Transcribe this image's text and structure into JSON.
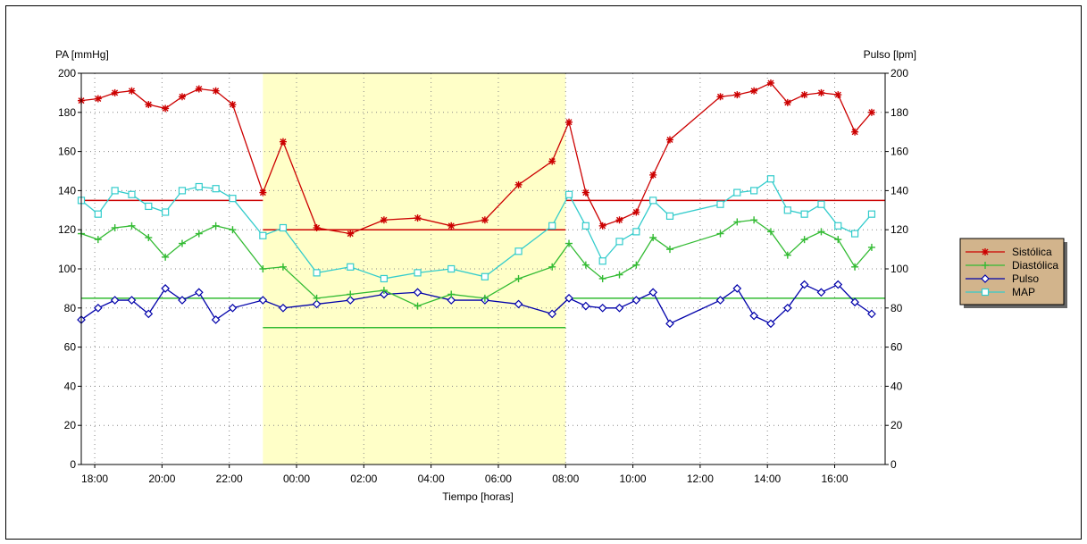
{
  "chart_data": {
    "type": "line",
    "ylabel_left": "PA [mmHg]",
    "ylabel_right": "Pulso [lpm]",
    "xlabel": "Tiempo [horas]",
    "ylim": [
      0,
      200
    ],
    "yticks": [
      0,
      20,
      40,
      60,
      80,
      100,
      120,
      140,
      160,
      180,
      200
    ],
    "xlim": [
      17.6,
      41.5
    ],
    "xticks": [
      {
        "x": 18,
        "label": "18:00"
      },
      {
        "x": 20,
        "label": "20:00"
      },
      {
        "x": 22,
        "label": "22:00"
      },
      {
        "x": 24,
        "label": "00:00"
      },
      {
        "x": 26,
        "label": "02:00"
      },
      {
        "x": 28,
        "label": "04:00"
      },
      {
        "x": 30,
        "label": "06:00"
      },
      {
        "x": 32,
        "label": "08:00"
      },
      {
        "x": 34,
        "label": "10:00"
      },
      {
        "x": 36,
        "label": "12:00"
      },
      {
        "x": 38,
        "label": "14:00"
      },
      {
        "x": 40,
        "label": "16:00"
      }
    ],
    "grid": true,
    "night_band": {
      "x0": 23.0,
      "x1": 32.0,
      "color": "#ffffc8"
    },
    "thresholds": [
      {
        "series": "Sistólica",
        "color": "#cc0000",
        "segments": [
          {
            "x0": 17.6,
            "x1": 23.0,
            "y": 135
          },
          {
            "x0": 23.0,
            "x1": 32.0,
            "y": 120
          },
          {
            "x0": 32.0,
            "x1": 41.5,
            "y": 135
          }
        ]
      },
      {
        "series": "Diastólica",
        "color": "#33bb33",
        "segments": [
          {
            "x0": 17.6,
            "x1": 23.0,
            "y": 85
          },
          {
            "x0": 23.0,
            "x1": 32.0,
            "y": 70
          },
          {
            "x0": 32.0,
            "x1": 41.5,
            "y": 85
          }
        ]
      }
    ],
    "series": [
      {
        "name": "Sistólica",
        "color": "#cc0000",
        "marker": "star",
        "x": [
          17.6,
          18.1,
          18.6,
          19.1,
          19.6,
          20.1,
          20.6,
          21.1,
          21.6,
          22.1,
          23.0,
          23.6,
          24.6,
          25.6,
          26.6,
          27.6,
          28.6,
          29.6,
          30.6,
          31.6,
          32.1,
          32.6,
          33.1,
          33.6,
          34.1,
          34.6,
          35.1,
          36.6,
          37.1,
          37.6,
          38.1,
          38.6,
          39.1,
          39.6,
          40.1,
          40.6,
          41.1
        ],
        "values": [
          186,
          187,
          190,
          191,
          184,
          182,
          188,
          192,
          191,
          184,
          139,
          165,
          121,
          118,
          125,
          126,
          122,
          125,
          143,
          155,
          175,
          139,
          122,
          125,
          129,
          148,
          166,
          188,
          189,
          191,
          195,
          185,
          189,
          190,
          189,
          170,
          180
        ]
      },
      {
        "name": "Diastólica",
        "color": "#33bb33",
        "marker": "plus",
        "x": [
          17.6,
          18.1,
          18.6,
          19.1,
          19.6,
          20.1,
          20.6,
          21.1,
          21.6,
          22.1,
          23.0,
          23.6,
          24.6,
          25.6,
          26.6,
          27.6,
          28.6,
          29.6,
          30.6,
          31.6,
          32.1,
          32.6,
          33.1,
          33.6,
          34.1,
          34.6,
          35.1,
          36.6,
          37.1,
          37.6,
          38.1,
          38.6,
          39.1,
          39.6,
          40.1,
          40.6,
          41.1
        ],
        "values": [
          118,
          115,
          121,
          122,
          116,
          106,
          113,
          118,
          122,
          120,
          100,
          101,
          85,
          87,
          89,
          81,
          87,
          85,
          95,
          101,
          113,
          102,
          95,
          97,
          102,
          116,
          110,
          118,
          124,
          125,
          119,
          107,
          115,
          119,
          115,
          101,
          111
        ]
      },
      {
        "name": "Pulso",
        "color": "#0000aa",
        "marker": "diamond",
        "x": [
          17.6,
          18.1,
          18.6,
          19.1,
          19.6,
          20.1,
          20.6,
          21.1,
          21.6,
          22.1,
          23.0,
          23.6,
          24.6,
          25.6,
          26.6,
          27.6,
          28.6,
          29.6,
          30.6,
          31.6,
          32.1,
          32.6,
          33.1,
          33.6,
          34.1,
          34.6,
          35.1,
          36.6,
          37.1,
          37.6,
          38.1,
          38.6,
          39.1,
          39.6,
          40.1,
          40.6,
          41.1
        ],
        "values": [
          74,
          80,
          84,
          84,
          77,
          90,
          84,
          88,
          74,
          80,
          84,
          80,
          82,
          84,
          87,
          88,
          84,
          84,
          82,
          77,
          85,
          81,
          80,
          80,
          84,
          88,
          72,
          84,
          90,
          76,
          72,
          80,
          92,
          88,
          92,
          83,
          77
        ]
      },
      {
        "name": "MAP",
        "color": "#33cccc",
        "marker": "square",
        "x": [
          17.6,
          18.1,
          18.6,
          19.1,
          19.6,
          20.1,
          20.6,
          21.1,
          21.6,
          22.1,
          23.0,
          23.6,
          24.6,
          25.6,
          26.6,
          27.6,
          28.6,
          29.6,
          30.6,
          31.6,
          32.1,
          32.6,
          33.1,
          33.6,
          34.1,
          34.6,
          35.1,
          36.6,
          37.1,
          37.6,
          38.1,
          38.6,
          39.1,
          39.6,
          40.1,
          40.6,
          41.1
        ],
        "values": [
          135,
          128,
          140,
          138,
          132,
          129,
          140,
          142,
          141,
          136,
          117,
          121,
          98,
          101,
          95,
          98,
          100,
          96,
          109,
          122,
          138,
          122,
          104,
          114,
          119,
          135,
          127,
          133,
          139,
          140,
          146,
          130,
          128,
          133,
          122,
          118,
          128
        ]
      }
    ],
    "legend_position": "right"
  },
  "legend": {
    "items": [
      {
        "label": "Sistólica",
        "color": "#cc0000",
        "marker": "star"
      },
      {
        "label": "Diastólica",
        "color": "#33bb33",
        "marker": "plus"
      },
      {
        "label": "Pulso",
        "color": "#0000aa",
        "marker": "diamond"
      },
      {
        "label": "MAP",
        "color": "#33cccc",
        "marker": "square"
      }
    ]
  }
}
